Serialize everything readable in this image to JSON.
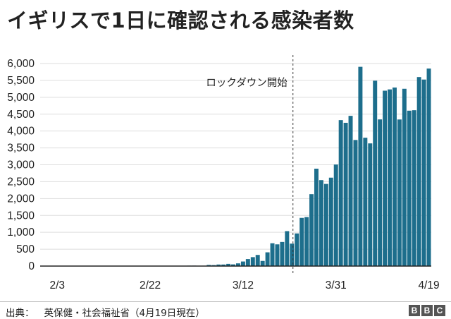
{
  "title": "イギリスで1日に確認される感染者数",
  "footer": {
    "source_label": "出典：",
    "source_text": "英保健・社会福祉省（4月19日現在）",
    "logo_letters": [
      "B",
      "B",
      "C"
    ]
  },
  "chart_data": {
    "type": "bar",
    "title": "イギリスで1日に確認される感染者数",
    "xlabel": "",
    "ylabel": "",
    "ylim": [
      0,
      6000
    ],
    "yticks": [
      0,
      500,
      1000,
      1500,
      2000,
      2500,
      3000,
      3500,
      4000,
      4500,
      5000,
      5500,
      6000
    ],
    "ytick_labels": [
      "0",
      "500",
      "1,000",
      "1,500",
      "2,000",
      "2,500",
      "3,000",
      "3,500",
      "4,000",
      "4,500",
      "5,000",
      "5,500",
      "6,000"
    ],
    "grid": true,
    "bar_color": "#1d6e8c",
    "annotation": {
      "label": "ロックダウン開始",
      "date": "3/23"
    },
    "x_tick_labels": [
      {
        "date": "2/3",
        "label": "2/3"
      },
      {
        "date": "2/22",
        "label": "2/22"
      },
      {
        "date": "3/12",
        "label": "3/12"
      },
      {
        "date": "3/31",
        "label": "3/31"
      },
      {
        "date": "4/19",
        "label": "4/19"
      }
    ],
    "categories": [
      "1/31",
      "2/1",
      "2/2",
      "2/3",
      "2/4",
      "2/5",
      "2/6",
      "2/7",
      "2/8",
      "2/9",
      "2/10",
      "2/11",
      "2/12",
      "2/13",
      "2/14",
      "2/15",
      "2/16",
      "2/17",
      "2/18",
      "2/19",
      "2/20",
      "2/21",
      "2/22",
      "2/23",
      "2/24",
      "2/25",
      "2/26",
      "2/27",
      "2/28",
      "2/29",
      "3/1",
      "3/2",
      "3/3",
      "3/4",
      "3/5",
      "3/6",
      "3/7",
      "3/8",
      "3/9",
      "3/10",
      "3/11",
      "3/12",
      "3/13",
      "3/14",
      "3/15",
      "3/16",
      "3/17",
      "3/18",
      "3/19",
      "3/20",
      "3/21",
      "3/22",
      "3/23",
      "3/24",
      "3/25",
      "3/26",
      "3/27",
      "3/28",
      "3/29",
      "3/30",
      "3/31",
      "4/1",
      "4/2",
      "4/3",
      "4/4",
      "4/5",
      "4/6",
      "4/7",
      "4/8",
      "4/9",
      "4/10",
      "4/11",
      "4/12",
      "4/13",
      "4/14",
      "4/15",
      "4/16",
      "4/17",
      "4/18",
      "4/19"
    ],
    "values": [
      2,
      0,
      0,
      0,
      0,
      0,
      0,
      1,
      0,
      1,
      4,
      0,
      1,
      0,
      0,
      0,
      0,
      0,
      0,
      0,
      0,
      0,
      0,
      0,
      0,
      0,
      0,
      0,
      5,
      8,
      12,
      13,
      4,
      11,
      34,
      29,
      46,
      46,
      65,
      50,
      80,
      135,
      207,
      264,
      330,
      152,
      407,
      676,
      643,
      714,
      1035,
      665,
      967,
      1427,
      1452,
      2129,
      2885,
      2546,
      2433,
      2619,
      3009,
      4324,
      4244,
      4450,
      3735,
      5903,
      3802,
      3634,
      5491,
      4344,
      5195,
      5233,
      5288,
      4342,
      5252,
      4603,
      4617,
      5599,
      5525,
      5850
    ]
  }
}
